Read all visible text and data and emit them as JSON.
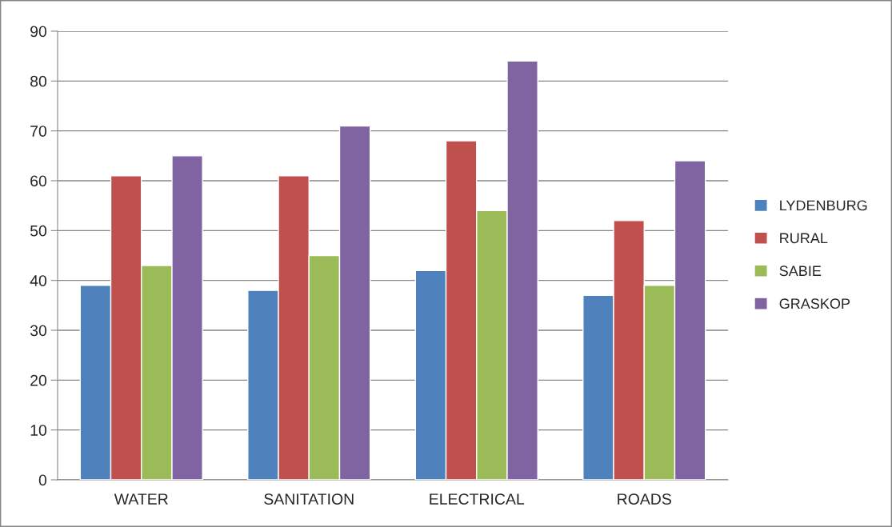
{
  "chart_data": {
    "type": "bar",
    "categories": [
      "WATER",
      "SANITATION",
      "ELECTRICAL",
      "ROADS"
    ],
    "series": [
      {
        "name": "LYDENBURG",
        "color": "#4f81bd",
        "values": [
          39,
          38,
          42,
          37
        ]
      },
      {
        "name": "RURAL",
        "color": "#c0504d",
        "values": [
          61,
          61,
          68,
          52
        ]
      },
      {
        "name": "SABIE",
        "color": "#9bbb59",
        "values": [
          43,
          45,
          54,
          39
        ]
      },
      {
        "name": "GRASKOP",
        "color": "#8064a2",
        "values": [
          65,
          71,
          84,
          64
        ]
      }
    ],
    "ylim": [
      0,
      90
    ],
    "yticks": [
      0,
      10,
      20,
      30,
      40,
      50,
      60,
      70,
      80,
      90
    ],
    "grid": "y",
    "legend": "right"
  }
}
